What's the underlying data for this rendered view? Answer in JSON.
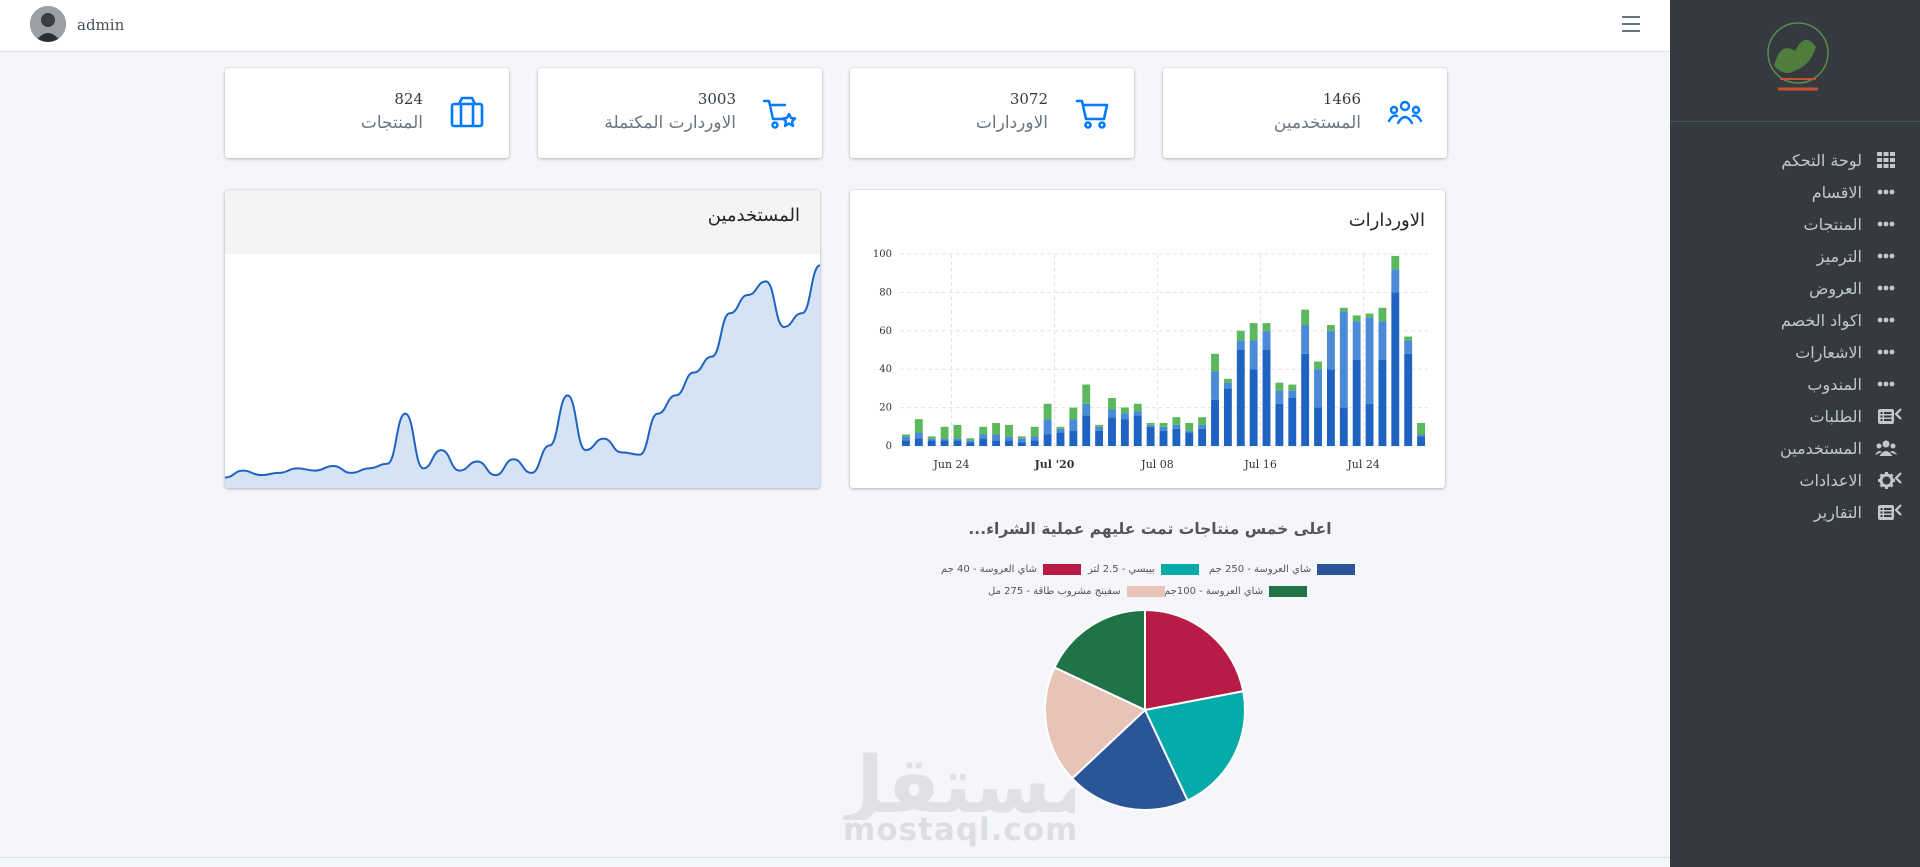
{
  "topbar": {
    "user_name": "admin"
  },
  "sidebar": {
    "items": [
      {
        "label": "لوحة التحكم",
        "icon": "grid-icon",
        "chevron": false
      },
      {
        "label": "الاقسام",
        "icon": "ellipsis-icon",
        "chevron": false
      },
      {
        "label": "المنتجات",
        "icon": "ellipsis-icon",
        "chevron": false
      },
      {
        "label": "الترميز",
        "icon": "ellipsis-icon",
        "chevron": false
      },
      {
        "label": "العروض",
        "icon": "ellipsis-icon",
        "chevron": false
      },
      {
        "label": "اكواد الخصم",
        "icon": "ellipsis-icon",
        "chevron": false
      },
      {
        "label": "الاشعارات",
        "icon": "ellipsis-icon",
        "chevron": false
      },
      {
        "label": "المندوب",
        "icon": "ellipsis-icon",
        "chevron": false
      },
      {
        "label": "الطلبات",
        "icon": "list-icon",
        "chevron": true
      },
      {
        "label": "المستخدمين",
        "icon": "users-icon",
        "chevron": false
      },
      {
        "label": "الاعدادات",
        "icon": "gear-icon",
        "chevron": true
      },
      {
        "label": "التقارير",
        "icon": "list-icon",
        "chevron": true
      }
    ]
  },
  "stats": [
    {
      "value": "1466",
      "label": "المستخدمين",
      "icon": "users-icon"
    },
    {
      "value": "3072",
      "label": "الاوردارات",
      "icon": "cart-icon"
    },
    {
      "value": "3003",
      "label": "الاوردارت المكتملة",
      "icon": "cart-star-icon"
    },
    {
      "value": "824",
      "label": "المنتجات",
      "icon": "box-icon"
    }
  ],
  "orders_card": {
    "title": "الاوردارات"
  },
  "users_card": {
    "title": "المستخدمين"
  },
  "pie_card": {
    "title": "اعلى خمس منتاجات تمت عليهم عملية الشراء..."
  },
  "watermark": {
    "arabic": "مستقل",
    "latin": "mostaql.com"
  },
  "colors": {
    "accent": "#007bff",
    "sidebar": "#343a40",
    "bar_dark": "#1f63c2",
    "bar_light": "#4a8ad6",
    "bar_green": "#5cb85c"
  },
  "chart_data": [
    {
      "type": "bar",
      "stacked": true,
      "x_tick_labels": [
        "Jun 24",
        "Jul '20",
        "Jul 08",
        "Jul 16",
        "Jul 24"
      ],
      "y_ticks": [
        0,
        20,
        40,
        60,
        80,
        100
      ],
      "ylim": [
        0,
        100
      ],
      "grid": true,
      "series": [
        {
          "values": [
            3,
            4,
            3,
            3,
            3,
            2,
            4,
            3,
            3,
            2,
            3,
            6,
            7,
            8,
            16,
            8,
            15,
            14,
            16,
            10,
            8,
            9,
            7,
            9,
            24,
            30,
            50,
            40,
            50,
            22,
            25,
            48,
            20,
            40,
            20,
            45,
            22,
            45,
            80,
            48,
            5
          ]
        },
        {
          "values": [
            2,
            3,
            1,
            1,
            1,
            1,
            2,
            3,
            2,
            2,
            2,
            8,
            2,
            6,
            6,
            2,
            4,
            3,
            2,
            1,
            2,
            2,
            1,
            2,
            15,
            3,
            5,
            15,
            10,
            7,
            4,
            15,
            20,
            20,
            50,
            20,
            45,
            20,
            12,
            7,
            1
          ]
        },
        {
          "values": [
            1,
            7,
            1,
            6,
            7,
            1,
            4,
            6,
            6,
            1,
            5,
            8,
            1,
            6,
            10,
            1,
            6,
            3,
            4,
            1,
            2,
            4,
            4,
            4,
            9,
            2,
            5,
            9,
            4,
            4,
            3,
            8,
            4,
            3,
            2,
            3,
            2,
            7,
            7,
            2,
            6
          ]
        }
      ]
    },
    {
      "type": "area",
      "series": [
        {
          "values": [
            2,
            5,
            3,
            4,
            6,
            5,
            7,
            4,
            6,
            8,
            30,
            6,
            14,
            5,
            9,
            3,
            10,
            4,
            16,
            38,
            14,
            19,
            13,
            12,
            30,
            38,
            48,
            55,
            74,
            82,
            88,
            68,
            74,
            95
          ]
        }
      ]
    },
    {
      "type": "pie",
      "title": "اعلى خمس منتاجات تمت عليهم عملية الشراء...",
      "legend_position": "top",
      "slices": [
        {
          "label": "شاي العروسة - 40 جم",
          "value": 22,
          "color": "#b81b46"
        },
        {
          "label": "بيبسي - 2.5 لتر",
          "value": 21,
          "color": "#05aaa9"
        },
        {
          "label": "شاي العروسة - 250 جم",
          "value": 20,
          "color": "#2a5597"
        },
        {
          "label": "سفينج مشروب طاقة - 275 مل",
          "value": 19,
          "color": "#e8c4b8"
        },
        {
          "label": "شاي العروسة - 100جم",
          "value": 18,
          "color": "#1f7347"
        }
      ]
    }
  ]
}
